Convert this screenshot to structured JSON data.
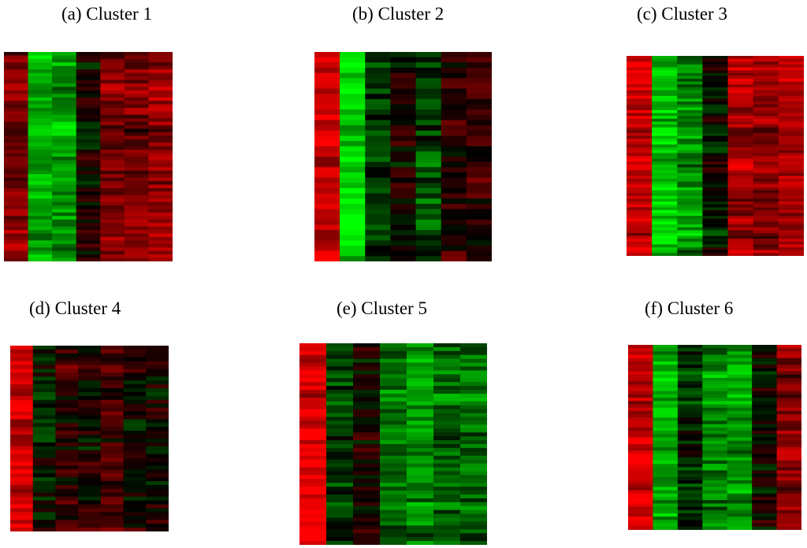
{
  "panels": [
    {
      "title": "(a) Cluster 1",
      "chart_data": {
        "type": "heatmap",
        "n_columns": 7,
        "n_rows": 60,
        "colormap": {
          "low": "#00ff00",
          "mid": "#000000",
          "high": "#ff0000"
        },
        "column_means": [
          0.5,
          -0.7,
          -0.62,
          0.02,
          0.48,
          0.42,
          0.6
        ]
      }
    },
    {
      "title": "(b) Cluster 2",
      "chart_data": {
        "type": "heatmap",
        "n_columns": 7,
        "n_rows": 40,
        "colormap": {
          "low": "#00ff00",
          "mid": "#000000",
          "high": "#ff0000"
        },
        "column_means": [
          0.75,
          -0.85,
          -0.25,
          0.05,
          -0.3,
          0.15,
          0.2
        ]
      }
    },
    {
      "title": "(c) Cluster 3",
      "chart_data": {
        "type": "heatmap",
        "n_columns": 7,
        "n_rows": 70,
        "colormap": {
          "low": "#00ff00",
          "mid": "#000000",
          "high": "#ff0000"
        },
        "column_means": [
          0.8,
          -0.75,
          -0.55,
          0.0,
          0.65,
          0.55,
          0.7
        ]
      }
    },
    {
      "title": "(d) Cluster 4",
      "chart_data": {
        "type": "heatmap",
        "n_columns": 7,
        "n_rows": 48,
        "colormap": {
          "low": "#00ff00",
          "mid": "#000000",
          "high": "#ff0000"
        },
        "column_means": [
          0.82,
          -0.1,
          0.2,
          0.1,
          0.3,
          0.05,
          0.08
        ]
      }
    },
    {
      "title": "(e) Cluster 5",
      "chart_data": {
        "type": "heatmap",
        "n_columns": 7,
        "n_rows": 52,
        "colormap": {
          "low": "#00ff00",
          "mid": "#000000",
          "high": "#ff0000"
        },
        "column_means": [
          0.88,
          -0.25,
          0.05,
          -0.45,
          -0.55,
          -0.4,
          -0.45
        ]
      }
    },
    {
      "title": "(f) Cluster 6",
      "chart_data": {
        "type": "heatmap",
        "n_columns": 7,
        "n_rows": 56,
        "colormap": {
          "low": "#00ff00",
          "mid": "#000000",
          "high": "#ff0000"
        },
        "column_means": [
          0.75,
          -0.7,
          -0.2,
          -0.55,
          -0.6,
          0.0,
          0.5
        ]
      }
    }
  ]
}
